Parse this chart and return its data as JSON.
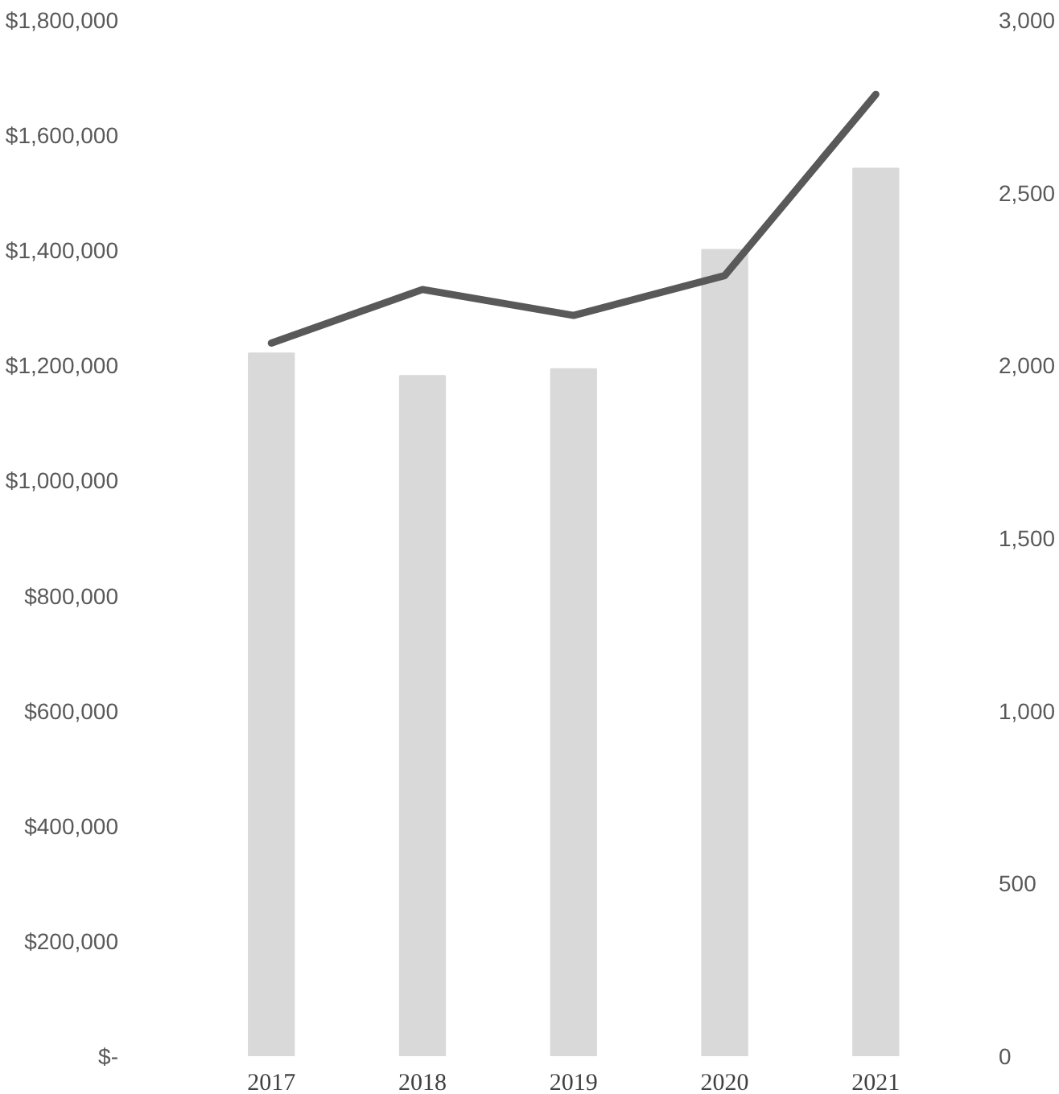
{
  "chart_data": {
    "type": "bar",
    "categories": [
      "2017",
      "2018",
      "2019",
      "2020",
      "2021"
    ],
    "series": [
      {
        "color": "#d9d9d9",
        "values": [
          1221000,
          1182000,
          1194000,
          1401000,
          1542000
        ]
      },
      {
        "type": "line",
        "axis": "y2",
        "color": "#595959",
        "values": [
          2065,
          2220,
          2145,
          2260,
          2785
        ]
      }
    ],
    "ylim": [
      0,
      1800000
    ],
    "yticks": [
      {
        "value": 0,
        "label": "$-"
      },
      {
        "value": 200000,
        "label": "$200,000"
      },
      {
        "value": 400000,
        "label": "$400,000"
      },
      {
        "value": 600000,
        "label": "$600,000"
      },
      {
        "value": 800000,
        "label": "$800,000"
      },
      {
        "value": 1000000,
        "label": "$1,000,000"
      },
      {
        "value": 1200000,
        "label": "$1,200,000"
      },
      {
        "value": 1400000,
        "label": "$1,400,000"
      },
      {
        "value": 1600000,
        "label": "$1,600,000"
      },
      {
        "value": 1800000,
        "label": "$1,800,000"
      }
    ],
    "y2lim": [
      0,
      3000
    ],
    "y2ticks": [
      0,
      500,
      {
        "value": 1000,
        "label": "1,000"
      },
      {
        "value": 1500,
        "label": "1,500"
      },
      {
        "value": 2000,
        "label": "2,000"
      },
      {
        "value": 2500,
        "label": "2,500"
      },
      {
        "value": 3000,
        "label": "3,000"
      }
    ],
    "grid": false
  }
}
